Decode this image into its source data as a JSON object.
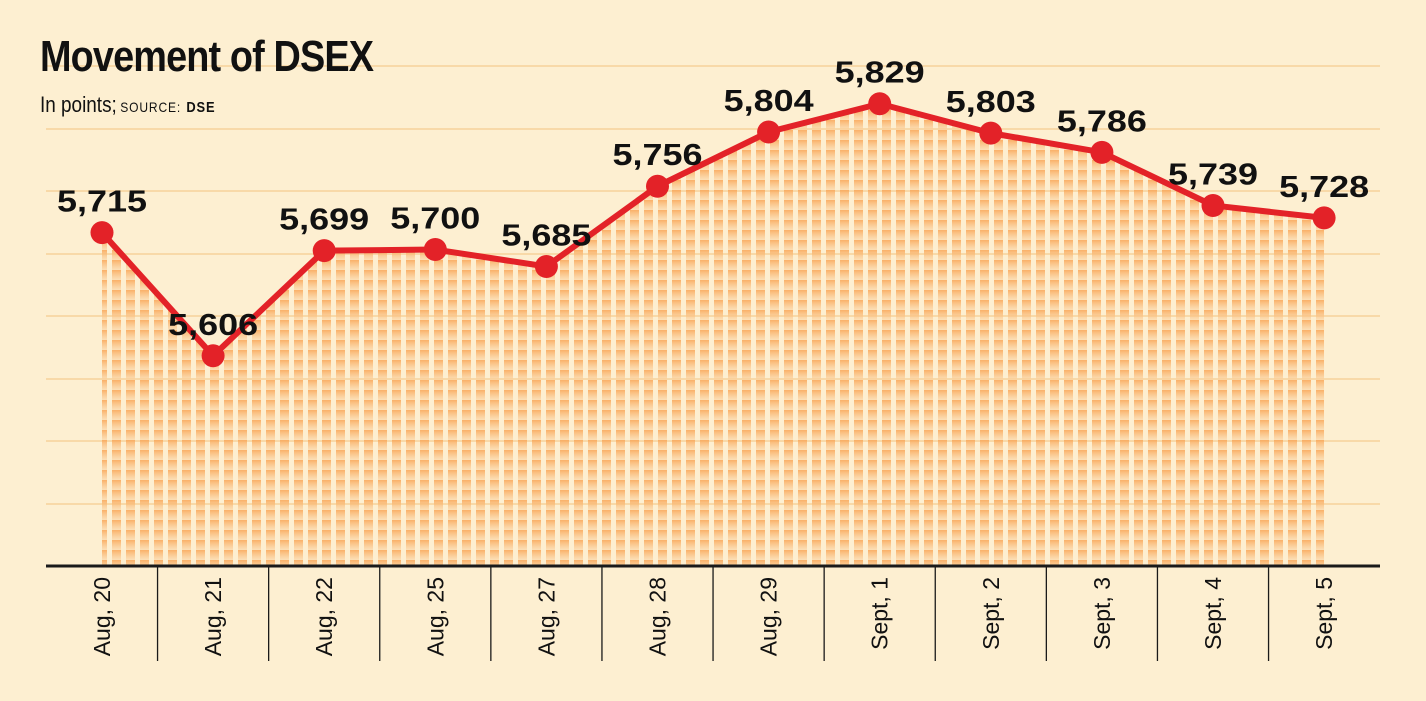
{
  "header": {
    "title": "Movement of DSEX",
    "subtitle_prefix": "In points;",
    "source_label": "SOURCE:",
    "source_value": "DSE"
  },
  "colors": {
    "background": "#fdefd1",
    "line": "#e32228",
    "marker": "#e32228",
    "fill": "#f9b46e",
    "grid": "#f8d9a8",
    "axis": "#1a1a1a"
  },
  "chart_data": {
    "type": "line",
    "title": "Movement of DSEX",
    "subtitle": "In points; SOURCE: DSE",
    "categories": [
      "Aug, 20",
      "Aug, 21",
      "Aug, 22",
      "Aug, 25",
      "Aug, 27",
      "Aug, 28",
      "Aug, 29",
      "Sept, 1",
      "Sept, 2",
      "Sept, 3",
      "Sept, 4",
      "Sept, 5"
    ],
    "series": [
      {
        "values": [
          5715,
          5606,
          5699,
          5700,
          5685,
          5756,
          5804,
          5829,
          5803,
          5786,
          5739,
          5728
        ],
        "labels": [
          "5,715",
          "5,606",
          "5,699",
          "5,700",
          "5,685",
          "5,756",
          "5,804",
          "5,829",
          "5,803",
          "5,786",
          "5,739",
          "5,728"
        ]
      }
    ],
    "ylim": [
      5420,
      5850
    ],
    "grid": true,
    "area_fill": true,
    "markers": true,
    "xlabel": "",
    "ylabel": ""
  }
}
